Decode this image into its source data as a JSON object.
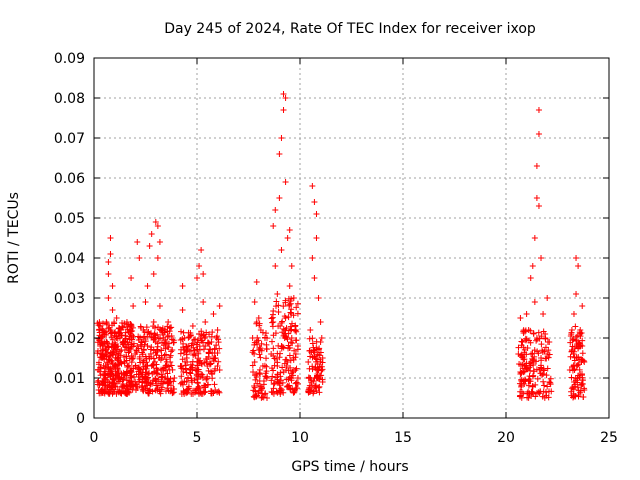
{
  "chart_data": {
    "type": "scatter",
    "title": "Day 245 of 2024, Rate Of TEC Index for receiver ixop",
    "xlabel": "GPS time / hours",
    "ylabel": "ROTI / TECUs",
    "xlim": [
      0,
      25
    ],
    "ylim": [
      0,
      0.09
    ],
    "xticks": [
      "0",
      "5",
      "10",
      "15",
      "20",
      "25"
    ],
    "yticks": [
      "0",
      "0.01",
      "0.02",
      "0.03",
      "0.04",
      "0.05",
      "0.06",
      "0.07",
      "0.08",
      "0.09"
    ],
    "grid": true,
    "legend": "none",
    "marker": "+",
    "color": "#ff0000",
    "series": [
      {
        "points": [
          [
            0.2,
            0.012
          ],
          [
            0.3,
            0.018
          ],
          [
            0.3,
            0.023
          ],
          [
            0.4,
            0.009
          ],
          [
            0.4,
            0.015
          ],
          [
            0.5,
            0.021
          ],
          [
            0.5,
            0.011
          ],
          [
            0.6,
            0.024
          ],
          [
            0.6,
            0.016
          ],
          [
            0.7,
            0.036
          ],
          [
            0.7,
            0.039
          ],
          [
            0.7,
            0.03
          ],
          [
            0.8,
            0.041
          ],
          [
            0.8,
            0.045
          ],
          [
            0.8,
            0.022
          ],
          [
            0.8,
            0.012
          ],
          [
            0.9,
            0.033
          ],
          [
            0.9,
            0.027
          ],
          [
            0.9,
            0.009
          ],
          [
            1.0,
            0.018
          ],
          [
            1.0,
            0.013
          ],
          [
            1.1,
            0.025
          ],
          [
            1.1,
            0.02
          ],
          [
            1.2,
            0.016
          ],
          [
            1.2,
            0.01
          ],
          [
            1.3,
            0.022
          ],
          [
            1.3,
            0.014
          ],
          [
            1.4,
            0.019
          ],
          [
            1.4,
            0.008
          ],
          [
            1.5,
            0.017
          ],
          [
            1.5,
            0.011
          ],
          [
            1.6,
            0.024
          ],
          [
            1.7,
            0.013
          ],
          [
            1.8,
            0.02
          ],
          [
            1.8,
            0.035
          ],
          [
            1.9,
            0.015
          ],
          [
            1.9,
            0.028
          ],
          [
            2.0,
            0.016
          ],
          [
            2.0,
            0.009
          ],
          [
            2.1,
            0.018
          ],
          [
            2.1,
            0.044
          ],
          [
            2.2,
            0.04
          ],
          [
            2.2,
            0.012
          ],
          [
            2.4,
            0.022
          ],
          [
            2.4,
            0.014
          ],
          [
            2.5,
            0.029
          ],
          [
            2.5,
            0.01
          ],
          [
            2.6,
            0.033
          ],
          [
            2.6,
            0.018
          ],
          [
            2.7,
            0.021
          ],
          [
            2.7,
            0.043
          ],
          [
            2.8,
            0.046
          ],
          [
            2.8,
            0.013
          ],
          [
            2.9,
            0.024
          ],
          [
            2.9,
            0.036
          ],
          [
            3.0,
            0.049
          ],
          [
            3.0,
            0.019
          ],
          [
            3.1,
            0.048
          ],
          [
            3.1,
            0.04
          ],
          [
            3.1,
            0.011
          ],
          [
            3.2,
            0.028
          ],
          [
            3.2,
            0.044
          ],
          [
            3.3,
            0.022
          ],
          [
            3.3,
            0.015
          ],
          [
            3.5,
            0.012
          ],
          [
            3.5,
            0.019
          ],
          [
            3.6,
            0.024
          ],
          [
            3.7,
            0.014
          ],
          [
            3.8,
            0.017
          ],
          [
            3.9,
            0.01
          ],
          [
            4.2,
            0.013
          ],
          [
            4.3,
            0.033
          ],
          [
            4.3,
            0.027
          ],
          [
            4.4,
            0.02
          ],
          [
            4.5,
            0.015
          ],
          [
            4.5,
            0.009
          ],
          [
            4.6,
            0.018
          ],
          [
            4.7,
            0.012
          ],
          [
            4.8,
            0.023
          ],
          [
            4.9,
            0.016
          ],
          [
            5.0,
            0.035
          ],
          [
            5.0,
            0.014
          ],
          [
            5.1,
            0.038
          ],
          [
            5.1,
            0.021
          ],
          [
            5.2,
            0.042
          ],
          [
            5.2,
            0.011
          ],
          [
            5.3,
            0.036
          ],
          [
            5.3,
            0.029
          ],
          [
            5.4,
            0.018
          ],
          [
            5.4,
            0.024
          ],
          [
            5.5,
            0.013
          ],
          [
            5.7,
            0.019
          ],
          [
            5.8,
            0.026
          ],
          [
            5.9,
            0.015
          ],
          [
            6.0,
            0.022
          ],
          [
            6.1,
            0.028
          ],
          [
            6.1,
            0.012
          ],
          [
            7.7,
            0.02
          ],
          [
            7.8,
            0.029
          ],
          [
            7.8,
            0.014
          ],
          [
            7.9,
            0.034
          ],
          [
            7.9,
            0.011
          ],
          [
            8.0,
            0.025
          ],
          [
            8.0,
            0.017
          ],
          [
            8.1,
            0.022
          ],
          [
            8.1,
            0.007
          ],
          [
            8.2,
            0.013
          ],
          [
            8.3,
            0.02
          ],
          [
            8.4,
            0.01
          ],
          [
            8.6,
            0.016
          ],
          [
            8.7,
            0.024
          ],
          [
            8.7,
            0.048
          ],
          [
            8.8,
            0.052
          ],
          [
            8.8,
            0.038
          ],
          [
            8.9,
            0.031
          ],
          [
            8.9,
            0.013
          ],
          [
            9.0,
            0.055
          ],
          [
            9.0,
            0.066
          ],
          [
            9.1,
            0.07
          ],
          [
            9.1,
            0.042
          ],
          [
            9.1,
            0.018
          ],
          [
            9.2,
            0.081
          ],
          [
            9.2,
            0.077
          ],
          [
            9.3,
            0.08
          ],
          [
            9.3,
            0.059
          ],
          [
            9.3,
            0.025
          ],
          [
            9.4,
            0.045
          ],
          [
            9.4,
            0.014
          ],
          [
            9.5,
            0.047
          ],
          [
            9.5,
            0.033
          ],
          [
            9.6,
            0.038
          ],
          [
            9.6,
            0.02
          ],
          [
            9.7,
            0.03
          ],
          [
            9.7,
            0.012
          ],
          [
            9.8,
            0.022
          ],
          [
            9.8,
            0.016
          ],
          [
            9.9,
            0.018
          ],
          [
            9.9,
            0.01
          ],
          [
            10.4,
            0.014
          ],
          [
            10.5,
            0.022
          ],
          [
            10.5,
            0.01
          ],
          [
            10.6,
            0.058
          ],
          [
            10.6,
            0.04
          ],
          [
            10.7,
            0.054
          ],
          [
            10.7,
            0.035
          ],
          [
            10.7,
            0.017
          ],
          [
            10.8,
            0.051
          ],
          [
            10.8,
            0.045
          ],
          [
            10.9,
            0.03
          ],
          [
            10.9,
            0.012
          ],
          [
            11.0,
            0.024
          ],
          [
            11.0,
            0.019
          ],
          [
            11.1,
            0.015
          ],
          [
            11.1,
            0.009
          ],
          [
            20.6,
            0.016
          ],
          [
            20.7,
            0.025
          ],
          [
            20.7,
            0.011
          ],
          [
            20.8,
            0.019
          ],
          [
            20.9,
            0.013
          ],
          [
            21.0,
            0.026
          ],
          [
            21.1,
            0.022
          ],
          [
            21.2,
            0.035
          ],
          [
            21.2,
            0.014
          ],
          [
            21.3,
            0.038
          ],
          [
            21.3,
            0.008
          ],
          [
            21.4,
            0.029
          ],
          [
            21.4,
            0.045
          ],
          [
            21.5,
            0.055
          ],
          [
            21.5,
            0.063
          ],
          [
            21.5,
            0.02
          ],
          [
            21.6,
            0.071
          ],
          [
            21.6,
            0.077
          ],
          [
            21.6,
            0.053
          ],
          [
            21.7,
            0.04
          ],
          [
            21.7,
            0.015
          ],
          [
            21.8,
            0.026
          ],
          [
            21.8,
            0.011
          ],
          [
            21.9,
            0.021
          ],
          [
            22.0,
            0.03
          ],
          [
            22.0,
            0.016
          ],
          [
            22.1,
            0.019
          ],
          [
            22.1,
            0.009
          ],
          [
            23.1,
            0.012
          ],
          [
            23.2,
            0.022
          ],
          [
            23.2,
            0.017
          ],
          [
            23.3,
            0.026
          ],
          [
            23.3,
            0.009
          ],
          [
            23.4,
            0.04
          ],
          [
            23.4,
            0.031
          ],
          [
            23.5,
            0.038
          ],
          [
            23.5,
            0.015
          ],
          [
            23.6,
            0.021
          ],
          [
            23.6,
            0.011
          ],
          [
            23.7,
            0.028
          ],
          [
            23.7,
            0.018
          ],
          [
            23.8,
            0.014
          ],
          [
            23.8,
            0.007
          ]
        ],
        "clusters": [
          {
            "x": [
              0.15,
              1.95
            ],
            "y": [
              0.006,
              0.024
            ],
            "n": 360
          },
          {
            "x": [
              2.0,
              3.9
            ],
            "y": [
              0.006,
              0.023
            ],
            "n": 240
          },
          {
            "x": [
              4.2,
              6.1
            ],
            "y": [
              0.006,
              0.022
            ],
            "n": 200
          },
          {
            "x": [
              7.7,
              8.4
            ],
            "y": [
              0.005,
              0.024
            ],
            "n": 70
          },
          {
            "x": [
              8.6,
              9.9
            ],
            "y": [
              0.006,
              0.03
            ],
            "n": 150
          },
          {
            "x": [
              10.4,
              11.1
            ],
            "y": [
              0.006,
              0.02
            ],
            "n": 80
          },
          {
            "x": [
              20.6,
              22.2
            ],
            "y": [
              0.005,
              0.022
            ],
            "n": 150
          },
          {
            "x": [
              23.1,
              23.8
            ],
            "y": [
              0.005,
              0.023
            ],
            "n": 90
          }
        ]
      }
    ]
  }
}
